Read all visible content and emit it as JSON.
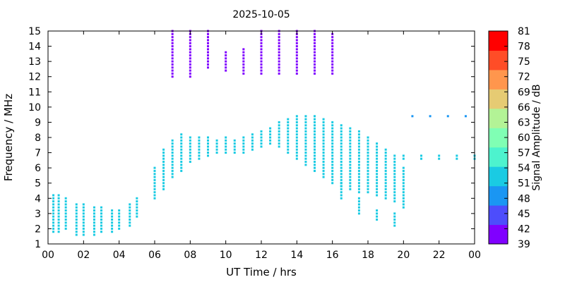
{
  "chart_data": {
    "type": "heatmap",
    "title": "2025-10-05",
    "xlabel": "UT Time / hrs",
    "ylabel": "Frequency / MHz",
    "xlim": [
      0,
      24
    ],
    "ylim": [
      1,
      15
    ],
    "x_tick_labels": [
      "00",
      "02",
      "04",
      "06",
      "08",
      "10",
      "12",
      "14",
      "16",
      "18",
      "20",
      "22",
      "00"
    ],
    "y_tick_labels": [
      "1",
      "2",
      "3",
      "4",
      "5",
      "6",
      "7",
      "8",
      "9",
      "10",
      "11",
      "12",
      "13",
      "14",
      "15"
    ],
    "grid": false,
    "colorbar": {
      "label": "Signal Amplitude / dB",
      "min": 39,
      "max": 81,
      "tick_labels": [
        "39",
        "42",
        "45",
        "48",
        "51",
        "54",
        "57",
        "60",
        "63",
        "66",
        "69",
        "72",
        "75",
        "78",
        "81"
      ],
      "colors": [
        "#8000ff",
        "#4d4dfc",
        "#1a96f3",
        "#1acbe3",
        "#4df3ce",
        "#80ffb4",
        "#b3f396",
        "#e6cb73",
        "#ff964d",
        "#ff4d27",
        "#ff0000"
      ]
    },
    "series": [
      {
        "x": [
          0.3,
          0.6,
          1.0,
          1.6,
          2.0,
          2.6,
          3.0,
          3.6,
          4.0,
          4.6,
          5.0
        ],
        "y_ranges": [
          [
            1.8,
            4.2
          ],
          [
            1.8,
            4.2
          ],
          [
            2.0,
            4.0
          ],
          [
            1.6,
            3.6
          ],
          [
            1.6,
            3.6
          ],
          [
            1.6,
            3.4
          ],
          [
            1.8,
            3.4
          ],
          [
            1.8,
            3.2
          ],
          [
            2.0,
            3.2
          ],
          [
            2.2,
            3.6
          ],
          [
            2.8,
            4.0
          ]
        ],
        "amplitude_db": 53
      },
      {
        "x": [
          6.0,
          6.5,
          7.0,
          7.5,
          8.0,
          8.5,
          9.0,
          9.5,
          10.0,
          10.5,
          11.0,
          11.5,
          12.0,
          12.5,
          13.0,
          13.5,
          14.0,
          14.5,
          15.0,
          15.5,
          16.0,
          16.5,
          17.0,
          17.5,
          18.0,
          18.5,
          19.0,
          19.5,
          20.0
        ],
        "y_ranges": [
          [
            4.0,
            6.0
          ],
          [
            4.6,
            7.2
          ],
          [
            5.4,
            7.8
          ],
          [
            5.8,
            8.2
          ],
          [
            6.4,
            8.0
          ],
          [
            6.6,
            8.0
          ],
          [
            6.8,
            8.0
          ],
          [
            7.0,
            7.8
          ],
          [
            7.0,
            8.0
          ],
          [
            7.0,
            7.8
          ],
          [
            7.0,
            8.0
          ],
          [
            7.2,
            8.2
          ],
          [
            7.4,
            8.4
          ],
          [
            7.6,
            8.6
          ],
          [
            7.4,
            9.0
          ],
          [
            7.0,
            9.2
          ],
          [
            6.6,
            9.4
          ],
          [
            6.2,
            9.4
          ],
          [
            5.8,
            9.4
          ],
          [
            5.4,
            9.2
          ],
          [
            5.0,
            9.0
          ],
          [
            4.8,
            8.8
          ],
          [
            4.6,
            8.6
          ],
          [
            4.4,
            8.4
          ],
          [
            4.4,
            8.0
          ],
          [
            4.2,
            7.6
          ],
          [
            4.0,
            7.2
          ],
          [
            3.8,
            6.8
          ],
          [
            3.4,
            6.0
          ]
        ],
        "amplitude_db": 52
      },
      {
        "x": [
          16.5,
          17.5,
          18.5,
          19.5
        ],
        "y_ranges": [
          [
            4.0,
            5.0
          ],
          [
            3.0,
            4.0
          ],
          [
            2.6,
            3.2
          ],
          [
            2.2,
            3.0
          ]
        ],
        "amplitude_db": 54
      },
      {
        "x": [
          20.0,
          21.0,
          22.0,
          23.0,
          24.0
        ],
        "y_ranges": [
          [
            6.6,
            6.8
          ],
          [
            6.6,
            6.8
          ],
          [
            6.6,
            6.8
          ],
          [
            6.6,
            6.8
          ],
          [
            6.6,
            6.8
          ]
        ],
        "amplitude_db": 52
      },
      {
        "x": [
          20.5,
          21.5,
          22.5,
          23.5
        ],
        "y_ranges": [
          [
            9.4,
            9.5
          ],
          [
            9.4,
            9.5
          ],
          [
            9.4,
            9.5
          ],
          [
            9.4,
            9.5
          ]
        ],
        "amplitude_db": 48
      },
      {
        "x": [
          7.0,
          8.0,
          9.0,
          10.0,
          11.0,
          12.0,
          13.0,
          14.0,
          15.0,
          16.0
        ],
        "y_ranges": [
          [
            12.0,
            15.0
          ],
          [
            12.0,
            15.0
          ],
          [
            12.6,
            15.0
          ],
          [
            12.4,
            13.6
          ],
          [
            12.2,
            13.8
          ],
          [
            12.2,
            15.0
          ],
          [
            12.2,
            15.0
          ],
          [
            12.2,
            15.0
          ],
          [
            12.2,
            15.0
          ],
          [
            12.2,
            14.8
          ]
        ],
        "amplitude_db": 42
      }
    ]
  }
}
